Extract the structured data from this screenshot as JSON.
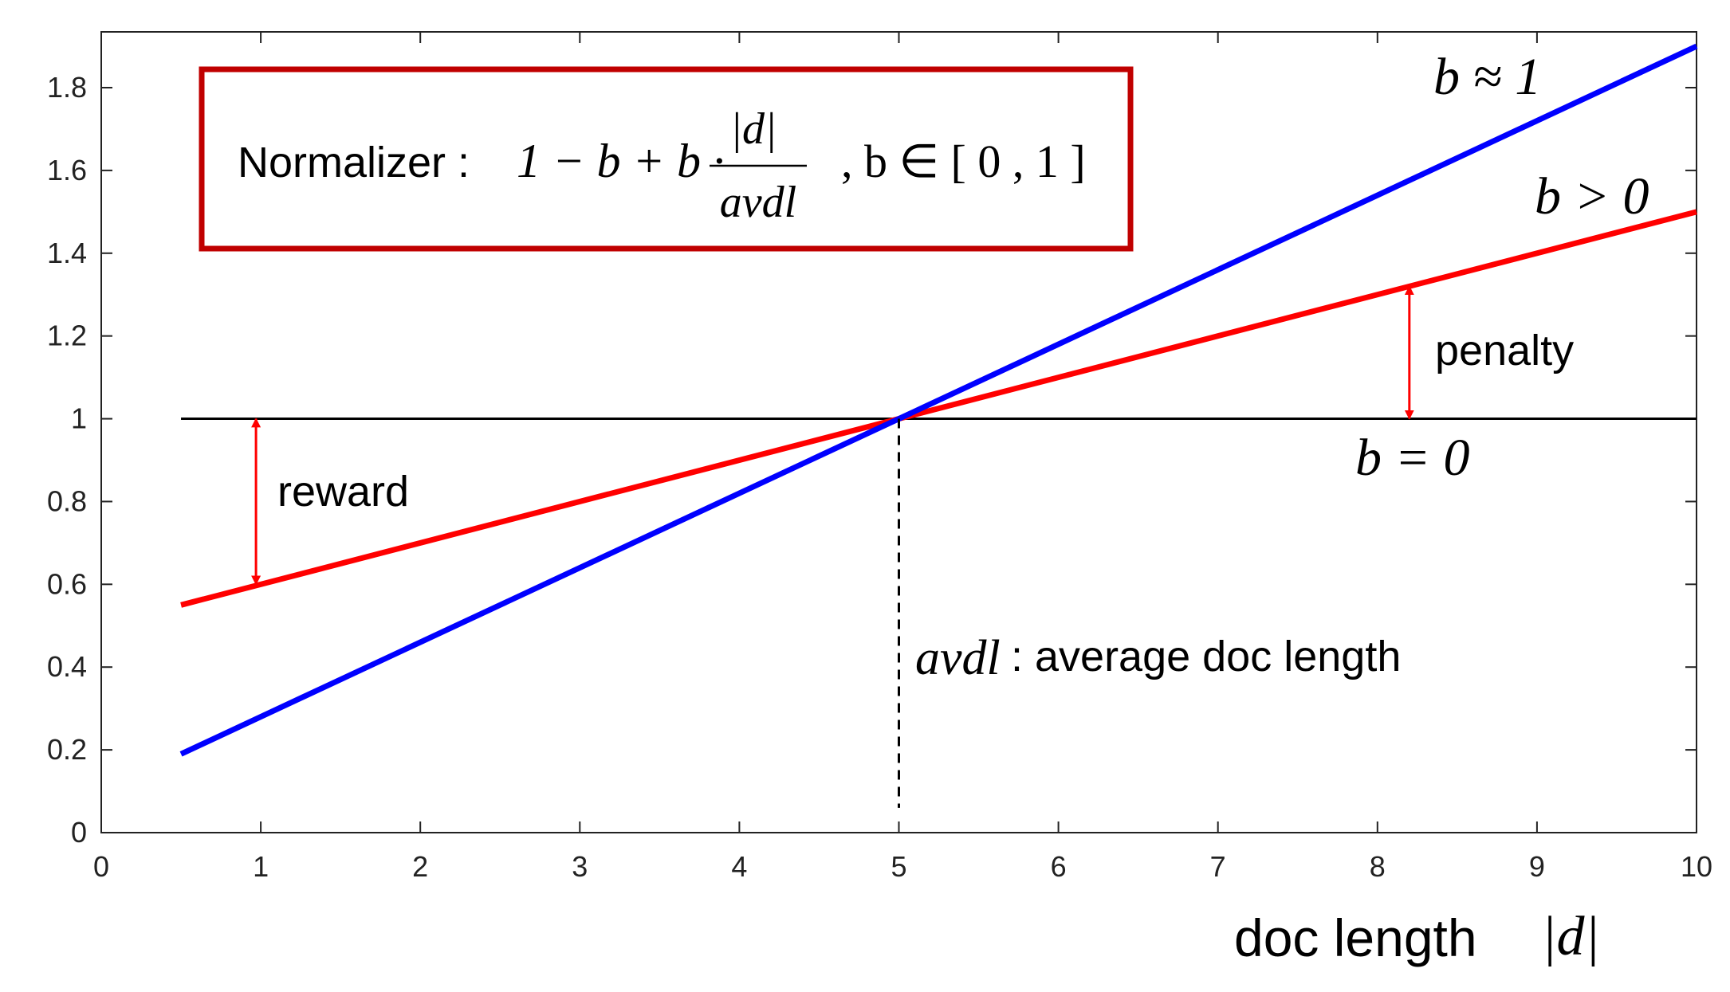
{
  "chart_data": {
    "type": "line",
    "xlabel": "doc length",
    "xlim": [
      0,
      10
    ],
    "ylim": [
      0,
      1.9
    ],
    "x_ticks": [
      0,
      1,
      2,
      3,
      4,
      5,
      6,
      7,
      8,
      9,
      10
    ],
    "y_ticks": [
      0,
      0.2,
      0.4,
      0.6,
      0.8,
      1,
      1.2,
      1.4,
      1.6,
      1.8
    ],
    "x_tick_labels": [
      "0",
      "1",
      "2",
      "3",
      "4",
      "5",
      "6",
      "7",
      "8",
      "9",
      "10"
    ],
    "y_tick_labels": [
      "0",
      "0.2",
      "0.4",
      "0.6",
      "0.8",
      "1",
      "1.2",
      "1.4",
      "1.6",
      "1.8"
    ],
    "series": [
      {
        "name": "b = 0",
        "color": "#000000",
        "x": [
          0.5,
          10
        ],
        "y": [
          1.0,
          1.0
        ]
      },
      {
        "name": "b > 0",
        "color": "#ff0000",
        "x": [
          0.5,
          10
        ],
        "y": [
          0.55,
          1.5
        ]
      },
      {
        "name": "b ≈ 1",
        "color": "#0000ff",
        "x": [
          0.5,
          10
        ],
        "y": [
          0.19,
          1.9
        ]
      }
    ],
    "avg_line": {
      "x": 5,
      "y_range": [
        0.06,
        1.0
      ]
    },
    "formula_box": {
      "prefix": "Normalizer :",
      "expr": "1 − b + b ·",
      "numerator": "|d|",
      "denominator": "avdl",
      "condition": ",  b ∈ [ 0 , 1 ]",
      "border_color": "#c00000"
    },
    "annotations": {
      "b_approx_1": "b ≈ 1",
      "b_gt_0": "b > 0",
      "b_eq_0": "b = 0",
      "penalty": "penalty",
      "reward": "reward",
      "avdl_symbol": "avdl",
      "avdl_text": ": average doc length",
      "d_symbol": "|d|"
    },
    "arrows": [
      {
        "name": "penalty",
        "x": 8.2,
        "y_from": 1.0,
        "y_to": 1.32,
        "color": "#ff0000"
      },
      {
        "name": "reward",
        "x": 0.97,
        "y_from": 0.6,
        "y_to": 1.0,
        "color": "#ff0000"
      }
    ],
    "grid": false
  }
}
